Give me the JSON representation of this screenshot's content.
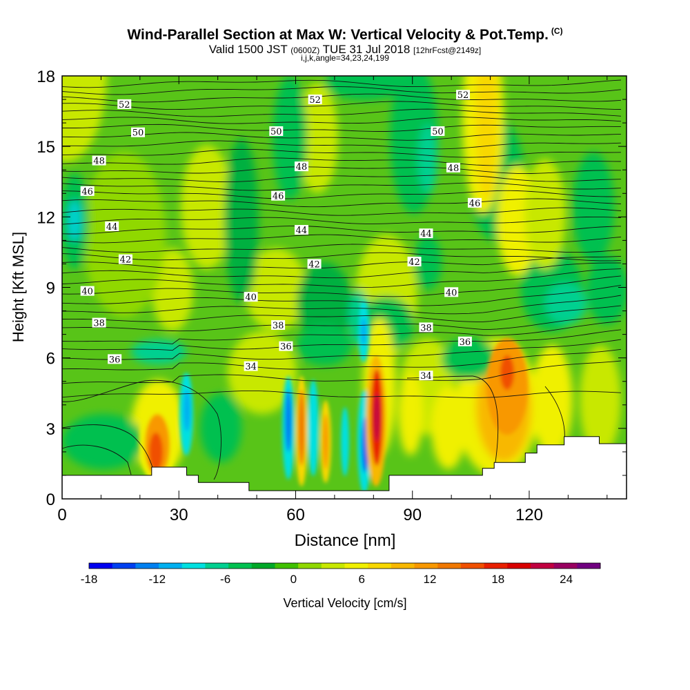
{
  "header": {
    "title": "Wind-Parallel Section at Max W: Vertical Velocity & Pot.Temp.",
    "title_mark": "(C)",
    "valid_prefix": "Valid 1500 JST",
    "valid_utc": "(0600Z)",
    "valid_date": "TUE 31 Jul 2018",
    "forecast": "[12hrFcst@2149z]",
    "indices": "i,j,k,angle=34,23,24,199"
  },
  "chart_data": {
    "type": "heatmap",
    "xlabel": "Distance [nm]",
    "ylabel": "Height [Kft MSL]",
    "xlim": [
      0,
      145
    ],
    "ylim": [
      0,
      18
    ],
    "x_ticks": [
      0,
      30,
      60,
      90,
      120
    ],
    "y_ticks": [
      0,
      3,
      6,
      9,
      12,
      15,
      18
    ],
    "colorbar": {
      "label": "Vertical Velocity [cm/s]",
      "min": -18,
      "max": 27,
      "tick_values": [
        -18,
        -12,
        -6,
        0,
        6,
        12,
        18,
        24
      ],
      "colors": [
        "#0000f0",
        "#0040f0",
        "#0080f0",
        "#00b0f0",
        "#00e0e0",
        "#00d090",
        "#00c050",
        "#00a828",
        "#40c000",
        "#90d800",
        "#c8e800",
        "#f0f000",
        "#f8d800",
        "#f8b800",
        "#f89800",
        "#f07800",
        "#f05000",
        "#e82000",
        "#d80000",
        "#c00040",
        "#980060",
        "#700080"
      ]
    },
    "contours": {
      "variable": "Potential temperature",
      "levels_labeled": [
        34,
        36,
        38,
        40,
        42,
        44,
        46,
        48,
        50,
        52
      ],
      "labels": [
        {
          "value": "52",
          "x": 16,
          "y": 16.8
        },
        {
          "value": "52",
          "x": 65,
          "y": 17.0
        },
        {
          "value": "52",
          "x": 103,
          "y": 17.2
        },
        {
          "value": "50",
          "x": 19.5,
          "y": 15.6
        },
        {
          "value": "50",
          "x": 55,
          "y": 15.65
        },
        {
          "value": "50",
          "x": 96.5,
          "y": 15.65
        },
        {
          "value": "48",
          "x": 9.5,
          "y": 14.4
        },
        {
          "value": "48",
          "x": 61.5,
          "y": 14.15
        },
        {
          "value": "48",
          "x": 100.5,
          "y": 14.1
        },
        {
          "value": "46",
          "x": 6.5,
          "y": 13.1
        },
        {
          "value": "46",
          "x": 55.5,
          "y": 12.9
        },
        {
          "value": "46",
          "x": 106,
          "y": 12.6
        },
        {
          "value": "44",
          "x": 12.8,
          "y": 11.6
        },
        {
          "value": "44",
          "x": 61.5,
          "y": 11.45
        },
        {
          "value": "44",
          "x": 93.5,
          "y": 11.3
        },
        {
          "value": "42",
          "x": 16.3,
          "y": 10.2
        },
        {
          "value": "42",
          "x": 64.8,
          "y": 10.0
        },
        {
          "value": "42",
          "x": 90.5,
          "y": 10.1
        },
        {
          "value": "40",
          "x": 6.5,
          "y": 8.85
        },
        {
          "value": "40",
          "x": 48.5,
          "y": 8.6
        },
        {
          "value": "40",
          "x": 100,
          "y": 8.8
        },
        {
          "value": "38",
          "x": 9.5,
          "y": 7.5
        },
        {
          "value": "38",
          "x": 55.5,
          "y": 7.4
        },
        {
          "value": "38",
          "x": 93.5,
          "y": 7.3
        },
        {
          "value": "36",
          "x": 13.5,
          "y": 5.95
        },
        {
          "value": "36",
          "x": 57.5,
          "y": 6.5
        },
        {
          "value": "36",
          "x": 103.5,
          "y": 6.7
        },
        {
          "value": "34",
          "x": 48.5,
          "y": 5.65
        },
        {
          "value": "34",
          "x": 93.5,
          "y": 5.25
        }
      ]
    },
    "terrain_profile": [
      [
        0,
        1.0
      ],
      [
        23,
        1.0
      ],
      [
        23,
        1.35
      ],
      [
        32,
        1.35
      ],
      [
        32,
        1.0
      ],
      [
        35,
        1.0
      ],
      [
        35,
        0.7
      ],
      [
        48,
        0.7
      ],
      [
        48,
        0.35
      ],
      [
        84,
        0.35
      ],
      [
        84,
        1.0
      ],
      [
        108,
        1.0
      ],
      [
        108,
        1.3
      ],
      [
        111,
        1.3
      ],
      [
        111,
        1.55
      ],
      [
        119,
        1.55
      ],
      [
        119,
        1.95
      ],
      [
        122,
        1.95
      ],
      [
        122,
        2.3
      ],
      [
        129,
        2.3
      ],
      [
        129,
        2.65
      ],
      [
        138,
        2.65
      ],
      [
        138,
        2.35
      ],
      [
        145,
        2.35
      ]
    ]
  }
}
